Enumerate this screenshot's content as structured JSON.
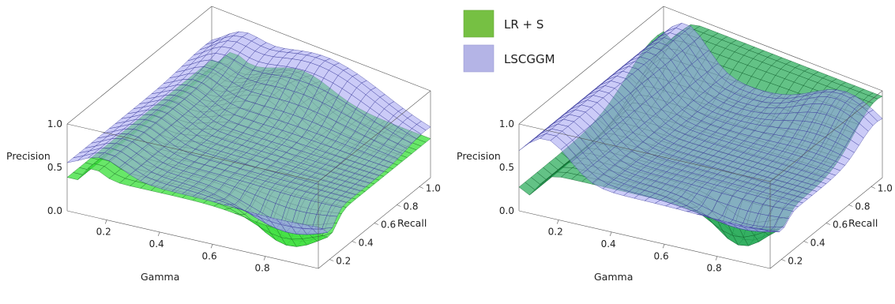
{
  "legend": {
    "items": [
      {
        "label": "LR + S",
        "color": "#76c043"
      },
      {
        "label": "LSCGGM",
        "color": "#b4b4e6"
      }
    ]
  },
  "chart_data": [
    {
      "type": "surface3d",
      "xlabel": "Gamma",
      "ylabel": "Recall",
      "zlabel": "Precision",
      "xticks": [
        0.2,
        0.4,
        0.6,
        0.8
      ],
      "yticks": [
        0.2,
        0.4,
        0.6,
        0.8,
        1.0
      ],
      "zticks": [
        0.0,
        0.5,
        1.0
      ],
      "xlim": [
        0.05,
        1.0
      ],
      "ylim": [
        0.1,
        1.1
      ],
      "zlim": [
        0.0,
        1.0
      ],
      "series": [
        {
          "name": "LR + S",
          "color": "#3ecb3e",
          "description_level": "plateau ~0.5, ridge up to ~0.9 near gamma 0.5"
        },
        {
          "name": "LSCGGM",
          "color": "#a0a0ec",
          "description_level": "plateau ~0.55, peak ~1.0 at high recall"
        }
      ]
    },
    {
      "type": "surface3d",
      "xlabel": "Gamma",
      "ylabel": "Recall",
      "zlabel": "Precision",
      "xticks": [
        0.2,
        0.4,
        0.6,
        0.8
      ],
      "yticks": [
        0.2,
        0.4,
        0.6,
        0.8,
        1.0
      ],
      "zticks": [
        0.0,
        0.5,
        1.0
      ],
      "xlim": [
        0.05,
        1.0
      ],
      "ylim": [
        0.1,
        1.1
      ],
      "zlim": [
        0.0,
        1.0
      ],
      "series": [
        {
          "name": "LR + S",
          "color": "#1e9e50",
          "description_level": "plateau ~0.55, rises to ~1.0 at high recall"
        },
        {
          "name": "LSCGGM",
          "color": "#a0a0ec",
          "description_level": "ridge ~0.8 along low gamma, ~0.9 at high recall"
        }
      ]
    }
  ]
}
